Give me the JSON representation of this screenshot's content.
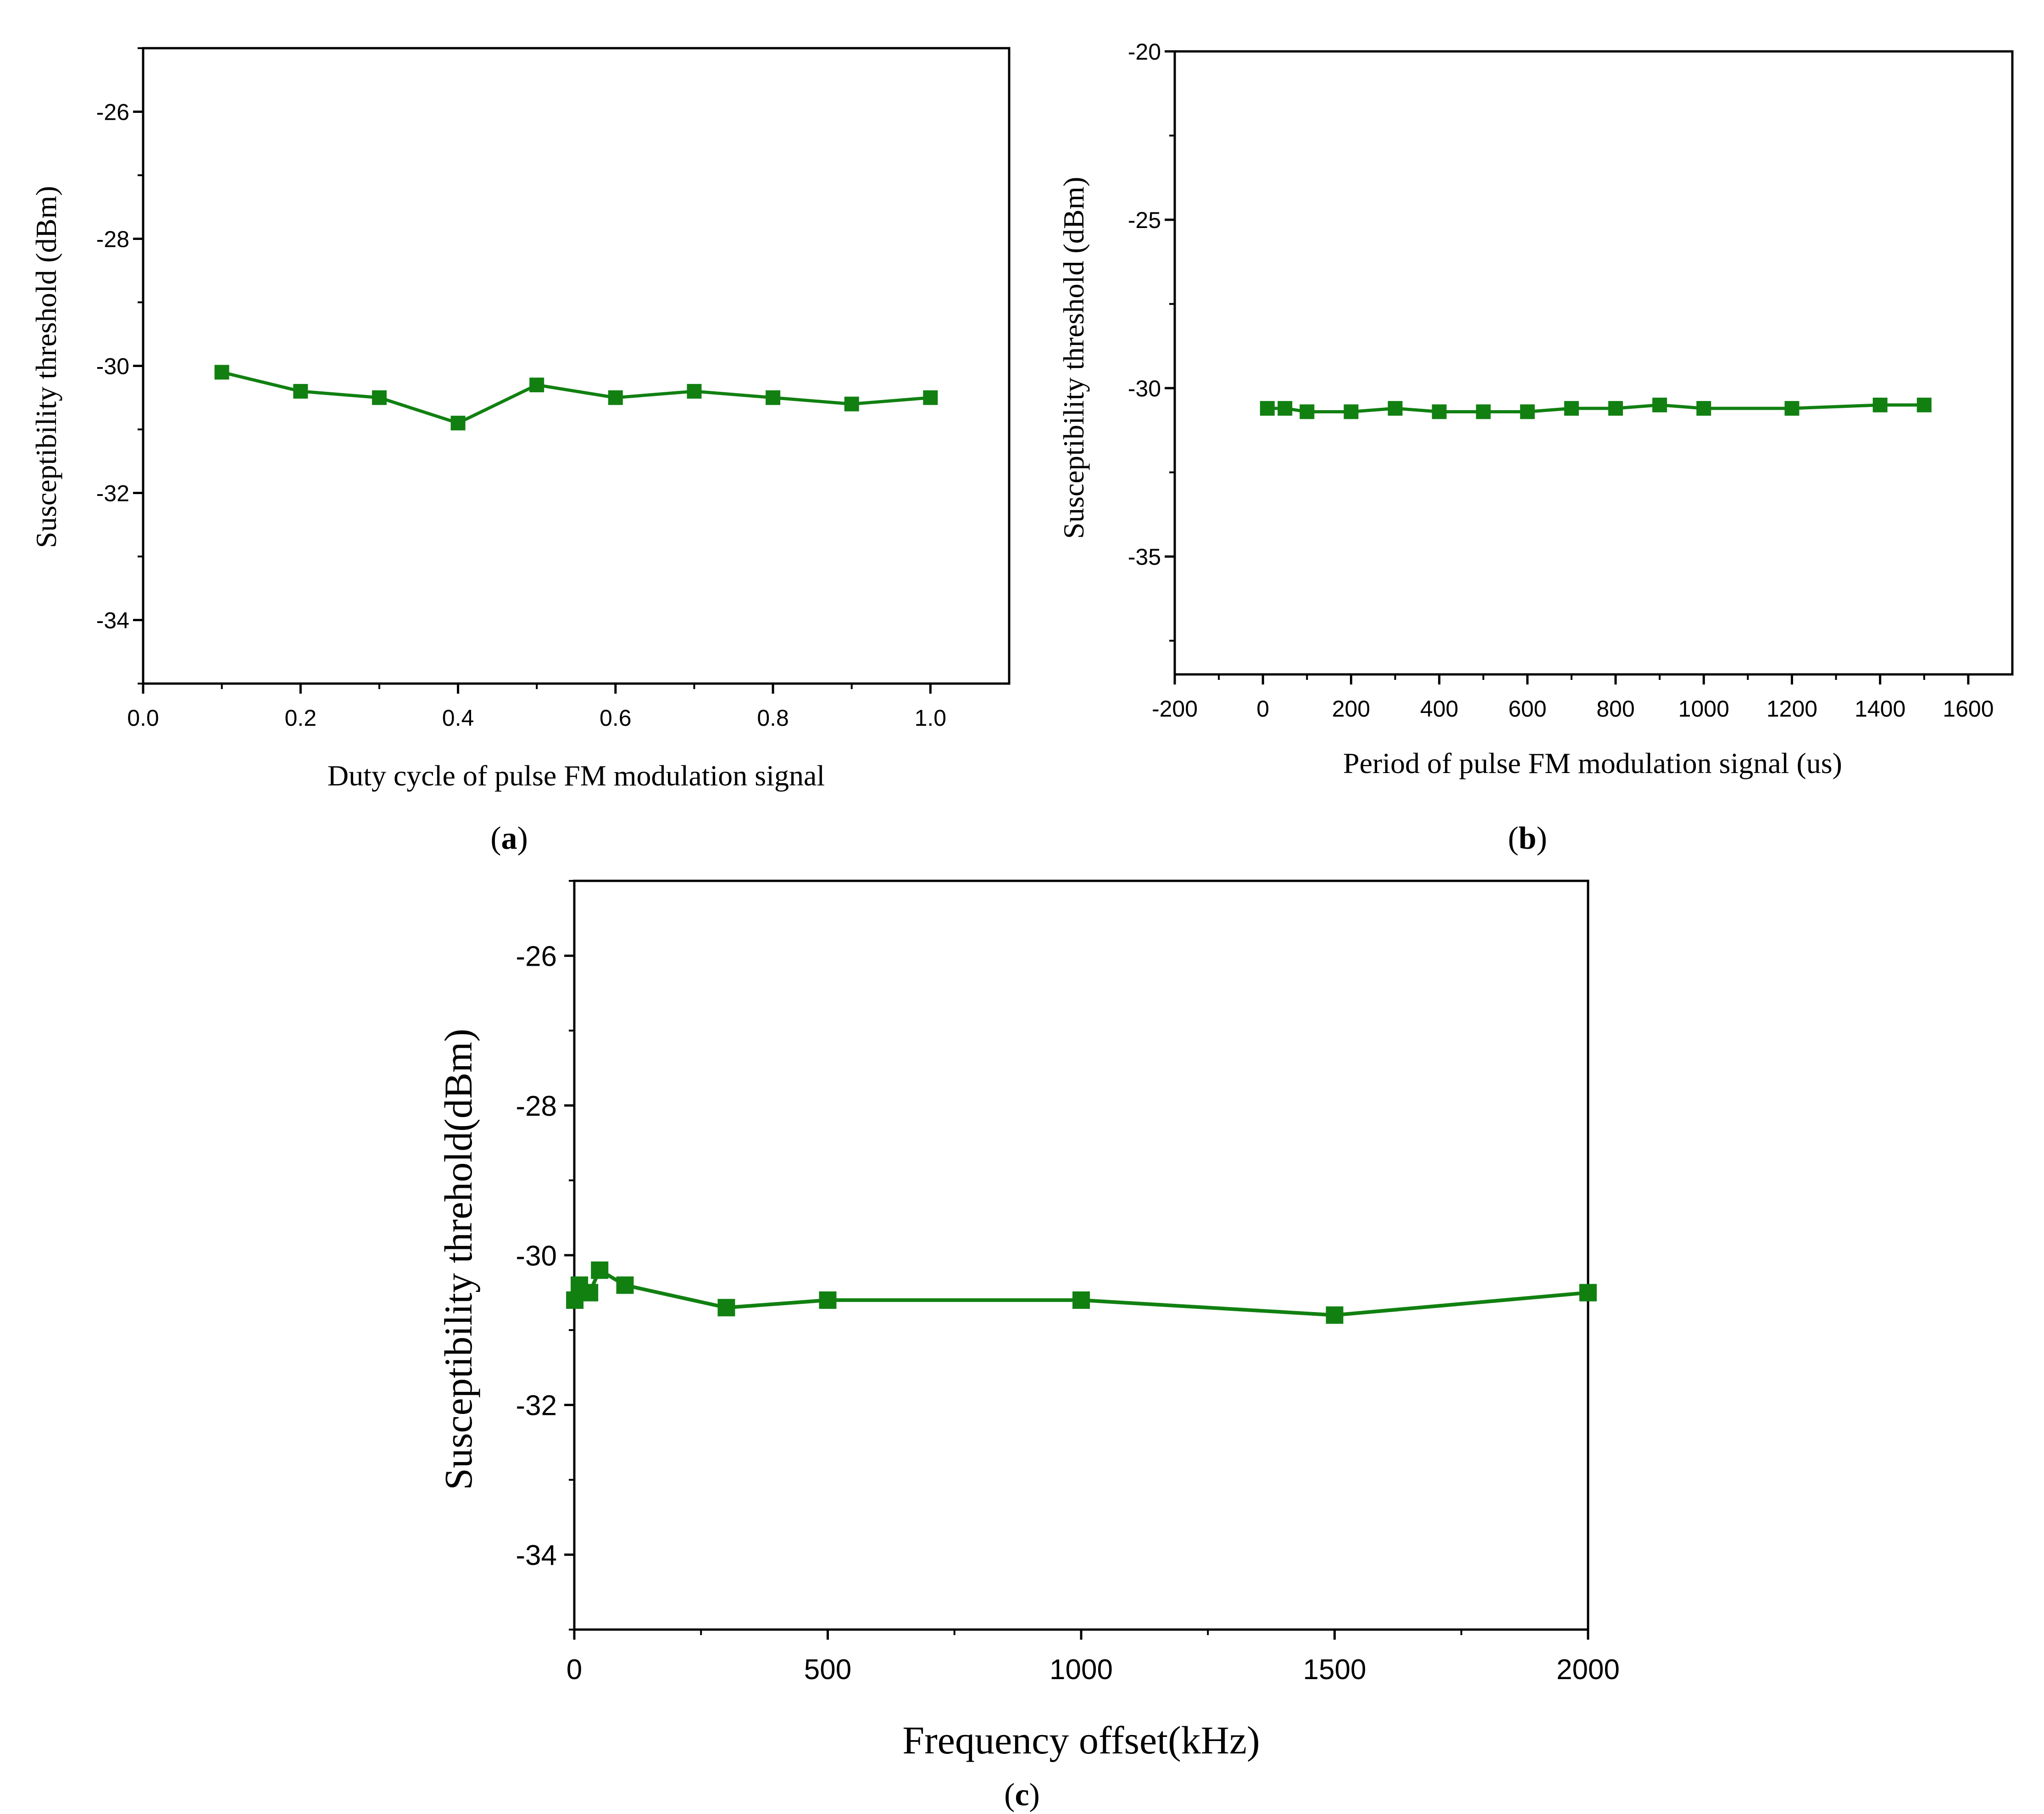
{
  "series_color": "#118011",
  "chart_data": [
    {
      "type": "line",
      "panel_label": "(a)",
      "panel_letter": "a",
      "xlabel": "Duty cycle of pulse FM modulation signal",
      "ylabel": "Susceptibility threshold  (dBm)",
      "xlim": [
        0.0,
        1.1
      ],
      "ylim": [
        -35,
        -25
      ],
      "xticks": [
        0.0,
        0.2,
        0.4,
        0.6,
        0.8,
        1.0
      ],
      "xtick_labels": [
        "0.0",
        "0.2",
        "0.4",
        "0.6",
        "0.8",
        "1.0"
      ],
      "yticks": [
        -34,
        -32,
        -30,
        -28,
        -26
      ],
      "ytick_labels": [
        "-34",
        "-32",
        "-30",
        "-28",
        "-26"
      ],
      "x": [
        0.1,
        0.2,
        0.3,
        0.4,
        0.5,
        0.6,
        0.7,
        0.8,
        0.9,
        1.0
      ],
      "y": [
        -30.1,
        -30.4,
        -30.5,
        -30.9,
        -30.3,
        -30.5,
        -30.4,
        -30.5,
        -30.6,
        -30.5
      ]
    },
    {
      "type": "line",
      "panel_label": "(b)",
      "panel_letter": "b",
      "xlabel": "Period of pulse FM modulation signal (us)",
      "ylabel": "Susceptibility threshold  (dBm)",
      "xlim": [
        -200,
        1700
      ],
      "ylim": [
        -38.5,
        -20
      ],
      "xticks": [
        -200,
        0,
        200,
        400,
        600,
        800,
        1000,
        1200,
        1400,
        1600
      ],
      "xtick_labels": [
        "-200",
        "0",
        "200",
        "400",
        "600",
        "800",
        "1000",
        "1200",
        "1400",
        "1600"
      ],
      "yticks": [
        -35,
        -30,
        -25,
        -20
      ],
      "ytick_labels": [
        "-35",
        "-30",
        "-25",
        "-20"
      ],
      "x": [
        10,
        50,
        100,
        200,
        300,
        400,
        500,
        600,
        700,
        800,
        900,
        1000,
        1200,
        1400,
        1500
      ],
      "y": [
        -30.6,
        -30.6,
        -30.7,
        -30.7,
        -30.6,
        -30.7,
        -30.7,
        -30.7,
        -30.6,
        -30.6,
        -30.5,
        -30.6,
        -30.6,
        -30.5,
        -30.5
      ]
    },
    {
      "type": "line",
      "panel_label": "(c)",
      "panel_letter": "c",
      "xlabel": "Frequency offset(kHz)",
      "ylabel": "Susceptibility threhold(dBm)",
      "xlim": [
        0,
        2000
      ],
      "ylim": [
        -35,
        -25
      ],
      "xticks": [
        0,
        500,
        1000,
        1500,
        2000
      ],
      "xtick_labels": [
        "0",
        "500",
        "1000",
        "1500",
        "2000"
      ],
      "yticks": [
        -34,
        -32,
        -30,
        -28,
        -26
      ],
      "ytick_labels": [
        "-34",
        "-32",
        "-30",
        "-28",
        "-26"
      ],
      "x": [
        1,
        10,
        30,
        50,
        100,
        300,
        500,
        1000,
        1500,
        2000
      ],
      "y": [
        -30.6,
        -30.4,
        -30.5,
        -30.2,
        -30.4,
        -30.7,
        -30.6,
        -30.6,
        -30.8,
        -30.5
      ]
    }
  ]
}
